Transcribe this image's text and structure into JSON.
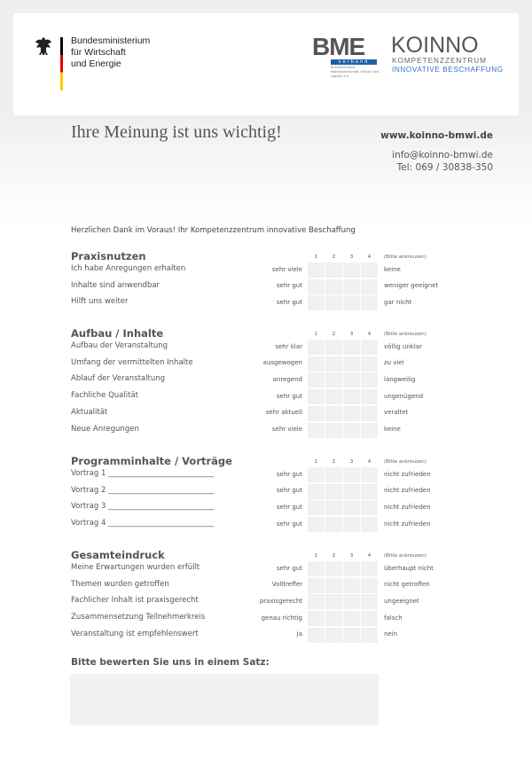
{
  "header": {
    "ministry_lines": [
      "Bundesministerium",
      "für Wirtschaft",
      "und Energie"
    ],
    "bme_logo": "BME",
    "bme_tag": "verband",
    "bme_sub": "Bundesverband Materialwirtschaft, Einkauf und Logistik e.V.",
    "koinno_logo": "KOINNO",
    "koinno_line1": "KOMPETENZZENTRUM",
    "koinno_line2": "INNOVATIVE BESCHAFFUNG",
    "flag_colors": [
      "#000000",
      "#dd0000",
      "#ffcc00"
    ]
  },
  "title": "Ihre Meinung ist uns wichtig!",
  "website": "www.koinno-bmwi.de",
  "email": "info@koinno-bmwi.de",
  "phone": "Tel: 069 / 30838-350",
  "thanks": "Herzlichen Dank im Voraus! Ihr Kompetenzzentrum innovative Beschaffung",
  "scale": [
    "1",
    "2",
    "3",
    "4"
  ],
  "scale_hint": "(Bitte ankreuzen)",
  "sections": [
    {
      "title": "Praxisnutzen",
      "rows": [
        {
          "label": "Ich habe Anregungen erhalten",
          "left": "sehr viele",
          "right": "keine"
        },
        {
          "label": "Inhalte sind anwendbar",
          "left": "sehr gut",
          "right": "weniger geeignet"
        },
        {
          "label": "Hilft uns weiter",
          "left": "sehr gut",
          "right": "gar nicht"
        }
      ]
    },
    {
      "title": "Aufbau / Inhalte",
      "rows": [
        {
          "label": "Aufbau der Veranstaltung",
          "left": "sehr klar",
          "right": "völlig unklar"
        },
        {
          "label": "Umfang der vermittelten Inhalte",
          "left": "ausgewogen",
          "right": "zu viel"
        },
        {
          "label": "Ablauf der Veranstaltung",
          "left": "anregend",
          "right": "langweilig"
        },
        {
          "label": "Fachliche Qualität",
          "left": "sehr gut",
          "right": "ungenügend"
        },
        {
          "label": "Aktualität",
          "left": "sehr aktuell",
          "right": "veraltet"
        },
        {
          "label": "Neue Anregungen",
          "left": "sehr viele",
          "right": "keine"
        }
      ]
    },
    {
      "title": "Programminhalte / Vorträge",
      "rows": [
        {
          "label": "Vortrag 1 ____________________________",
          "left": "sehr gut",
          "right": "nicht zufrieden"
        },
        {
          "label": "Vortrag 2 ____________________________",
          "left": "sehr gut",
          "right": "nicht zufrieden"
        },
        {
          "label": "Vortrag 3 ____________________________",
          "left": "sehr gut",
          "right": "nicht zufrieden"
        },
        {
          "label": "Vortrag 4 ____________________________",
          "left": "sehr gut",
          "right": "nicht zufrieden"
        }
      ]
    },
    {
      "title": "Gesamteindruck",
      "rows": [
        {
          "label": "Meine Erwartungen wurden erfüllt",
          "left": "sehr gut",
          "right": "überhaupt nicht"
        },
        {
          "label": "Themen wurden getroffen",
          "left": "Volltreffer",
          "right": "nicht getroffen"
        },
        {
          "label": "Fachlicher Inhalt ist praxisgerecht",
          "left": "praxisgerecht",
          "right": "ungeeignet"
        },
        {
          "label": "Zusammensetzung Teilnehmerkreis",
          "left": "genau richtig",
          "right": "falsch"
        },
        {
          "label": "Veranstaltung ist empfehlenswert",
          "left": "ja",
          "right": "nein"
        }
      ]
    }
  ],
  "rate_prompt": "Bitte bewerten Sie uns in einem Satz:",
  "rate_value": ""
}
